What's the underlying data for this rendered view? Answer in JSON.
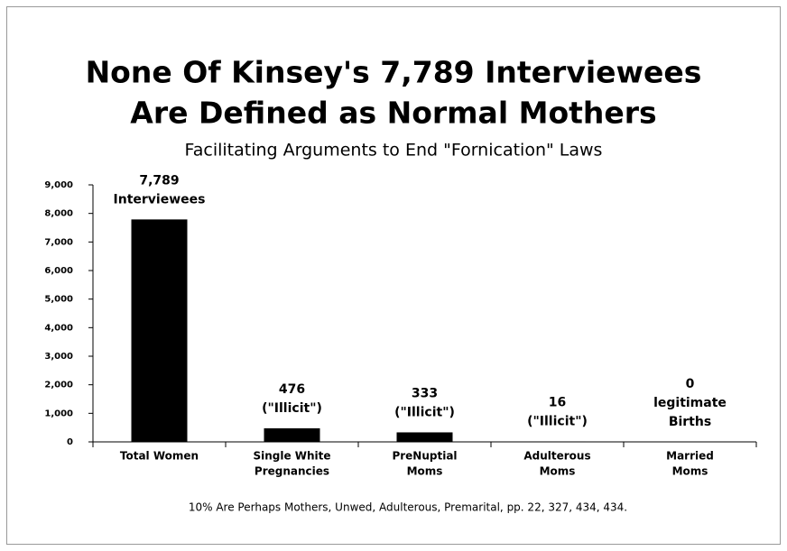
{
  "chart_data": {
    "type": "bar",
    "title": [
      "None Of Kinsey's 7,789 Interviewees",
      "Are Defined as Normal Mothers"
    ],
    "subtitle": "Facilitating Arguments to End \"Fornication\" Laws",
    "categories": [
      [
        "Total Women"
      ],
      [
        "Single White",
        "Pregnancies"
      ],
      [
        "PreNuptial",
        "Moms"
      ],
      [
        "Adulterous",
        "Moms"
      ],
      [
        "Married",
        "Moms"
      ]
    ],
    "values": [
      7789,
      476,
      333,
      16,
      0
    ],
    "value_labels": [
      [
        "7,789",
        "Interviewees"
      ],
      [
        "476",
        "(\"Illicit\")"
      ],
      [
        "333",
        "(\"Illicit\")"
      ],
      [
        "16",
        "(\"Illicit\")"
      ],
      [
        "0",
        "legitimate",
        "Births"
      ]
    ],
    "color": "#000000",
    "ylim": [
      0,
      9000
    ],
    "yticks": [
      0,
      {
        "value": 1000,
        "label": "1,000"
      },
      {
        "value": 2000,
        "label": "2,000"
      },
      {
        "value": 3000,
        "label": "3,000"
      },
      {
        "value": 4000,
        "label": "4,000"
      },
      {
        "value": 5000,
        "label": "5,000"
      },
      {
        "value": 6000,
        "label": "6,000"
      },
      {
        "value": 7000,
        "label": "7,000"
      },
      {
        "value": 8000,
        "label": "8,000"
      },
      {
        "value": 9000,
        "label": "9,000"
      }
    ],
    "grid": false,
    "footnote": "10% Are Perhaps Mothers, Unwed, Adulterous, Premarital, pp. 22, 327, 434, 434."
  }
}
